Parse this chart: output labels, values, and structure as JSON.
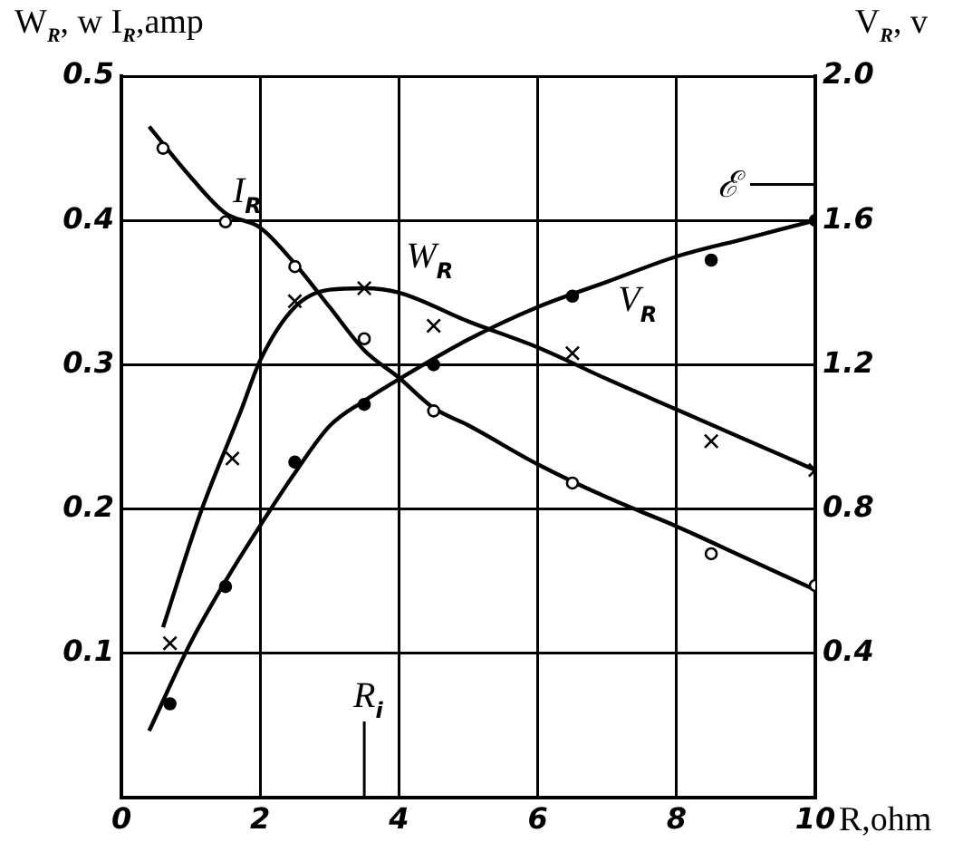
{
  "chart_data": {
    "type": "line",
    "xlabel": "R,ohm",
    "ylabel": "W$_{R}$, w  I$_{R}$,amp",
    "y2label": "V$_{R}$, v",
    "xlim": [
      0,
      10
    ],
    "xticks": [
      0,
      2,
      4,
      6,
      8,
      10
    ],
    "ylim": [
      0,
      0.5
    ],
    "yticks": [
      0.1,
      0.2,
      0.3,
      0.4,
      0.5
    ],
    "y2lim": [
      0,
      2
    ],
    "y2ticks": [
      0.4,
      0.8,
      1.2,
      1.6,
      {
        "value": 2,
        "label": "2.0"
      }
    ],
    "grid": true,
    "legend": false,
    "marker": "none",
    "line_style": "solid",
    "series": [
      {
        "name": "I$_{R}$",
        "color": "#000000",
        "x": [
          0.4,
          1,
          1.5,
          2,
          2.5,
          3,
          3.5,
          4,
          4.5,
          5,
          6,
          7,
          8,
          9,
          10
        ],
        "values": [
          0.465,
          0.43,
          0.405,
          0.395,
          0.37,
          0.34,
          0.31,
          0.291,
          0.27,
          0.258,
          0.231,
          0.208,
          0.188,
          0.166,
          0.144
        ]
      },
      {
        "name": "W$_{R}$",
        "color": "#000000",
        "x": [
          0.6,
          1.13,
          1.73,
          2,
          2.5,
          3,
          3.5,
          4,
          5,
          6,
          7,
          8,
          9,
          10
        ],
        "values": [
          0.118,
          0.196,
          0.269,
          0.303,
          0.34,
          0.352,
          0.353,
          0.35,
          0.33,
          0.312,
          0.29,
          0.269,
          0.248,
          0.227
        ]
      },
      {
        "name": "V$_{R}$",
        "axis": "y2",
        "color": "#000000",
        "x": [
          0.4,
          1,
          1.5,
          2,
          2.5,
          3,
          3.5,
          4,
          5,
          6,
          7,
          8,
          9,
          10
        ],
        "values": [
          0.185,
          0.43,
          0.6,
          0.754,
          0.9,
          1.03,
          1.1,
          1.16,
          1.27,
          1.36,
          1.43,
          1.5,
          1.55,
          1.6
        ]
      },
      {
        "type": "scatter",
        "marker": "circle",
        "color": "#000000",
        "x": [
          0.6,
          1.5,
          2.5,
          3.5,
          4.5,
          6.5,
          8.5,
          10
        ],
        "values": [
          0.45,
          0.399,
          0.368,
          0.318,
          0.268,
          0.218,
          0.169,
          0.147
        ]
      },
      {
        "type": "scatter",
        "marker": "cross",
        "color": "#000000",
        "x": [
          0.7,
          1.6,
          2.5,
          3.5,
          4.5,
          6.5,
          8.5,
          10
        ],
        "values": [
          0.107,
          0.235,
          0.344,
          0.353,
          0.327,
          0.308,
          0.247,
          0.227
        ]
      },
      {
        "type": "scatter",
        "marker": "circle",
        "axis": "y2",
        "color": "#000000",
        "x": [
          0.7,
          1.5,
          2.5,
          3.5,
          4.5,
          6.5,
          8.5,
          10
        ],
        "values": [
          0.26,
          0.585,
          0.93,
          1.09,
          1.2,
          1.39,
          1.49,
          1.6
        ]
      }
    ],
    "ref_lines": [
      {
        "axis": "x",
        "value": 3.5,
        "label": "R$_{i}$"
      },
      {
        "axis": "y2",
        "value": 1.7,
        "label": "ℰ"
      }
    ]
  }
}
